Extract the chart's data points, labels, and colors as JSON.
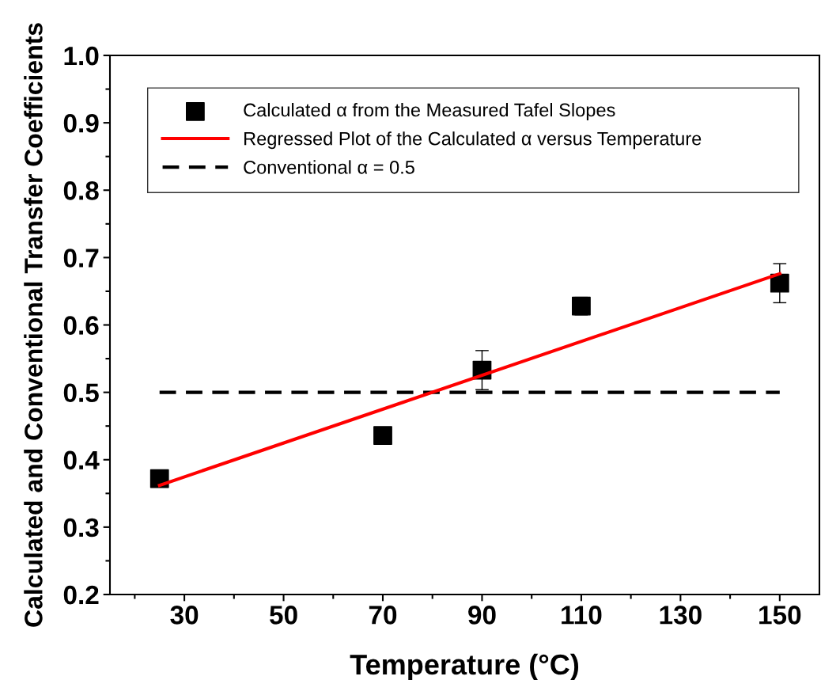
{
  "chart_data": {
    "type": "scatter",
    "xlabel": "Temperature (°C)",
    "ylabel": "Calculated and Conventional Transfer Coefficients",
    "xlim": [
      15,
      158
    ],
    "ylim": [
      0.2,
      1.0
    ],
    "xticks": [
      {
        "value": 20,
        "label": null
      },
      30,
      {
        "value": 40,
        "label": null
      },
      50,
      {
        "value": 60,
        "label": null
      },
      70,
      {
        "value": 80,
        "label": null
      },
      90,
      {
        "value": 100,
        "label": null
      },
      110,
      {
        "value": 120,
        "label": null
      },
      130,
      {
        "value": 140,
        "label": null
      },
      150
    ],
    "yticks": [
      0.2,
      {
        "value": 0.25,
        "label": null
      },
      0.3,
      {
        "value": 0.35,
        "label": null
      },
      0.4,
      {
        "value": 0.45,
        "label": null
      },
      0.5,
      {
        "value": 0.55,
        "label": null
      },
      0.6,
      {
        "value": 0.65,
        "label": null
      },
      0.7,
      {
        "value": 0.75,
        "label": null
      },
      0.8,
      {
        "value": 0.85,
        "label": null
      },
      0.9,
      {
        "value": 0.95,
        "label": null
      },
      {
        "value": 1.0,
        "label": "1.0"
      }
    ],
    "grid": false,
    "legend": "top",
    "series": [
      {
        "name": "Calculated α from the Measured Tafel Slopes",
        "marker": "square",
        "color": "#000000",
        "x": [
          25,
          70,
          90,
          110,
          150
        ],
        "values": [
          0.372,
          0.436,
          0.533,
          0.628,
          0.662
        ],
        "errors": [
          null,
          null,
          0.029,
          0.013,
          0.029
        ]
      },
      {
        "name": "Regressed Plot of the Calculated α versus Temperature",
        "type": "line",
        "color": "#ff0000",
        "line_style": "solid",
        "x": [
          25,
          150
        ],
        "values": [
          0.362,
          0.676
        ]
      },
      {
        "name": "Conventional α = 0.5",
        "type": "line",
        "color": "#000000",
        "line_style": "dashed",
        "x": [
          25,
          150
        ],
        "values": [
          0.5,
          0.5
        ]
      }
    ]
  }
}
